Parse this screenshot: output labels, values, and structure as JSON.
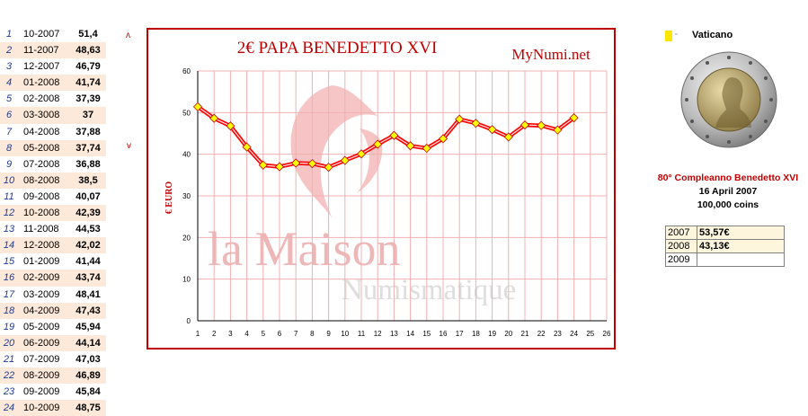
{
  "price_table": [
    {
      "idx": "1",
      "date": "10-2007",
      "price": "51,4"
    },
    {
      "idx": "2",
      "date": "11-2007",
      "price": "48,63"
    },
    {
      "idx": "3",
      "date": "12-2007",
      "price": "46,79"
    },
    {
      "idx": "4",
      "date": "01-2008",
      "price": "41,74"
    },
    {
      "idx": "5",
      "date": "02-2008",
      "price": "37,39"
    },
    {
      "idx": "6",
      "date": "03-3008",
      "price": "37"
    },
    {
      "idx": "7",
      "date": "04-2008",
      "price": "37,88"
    },
    {
      "idx": "8",
      "date": "05-2008",
      "price": "37,74"
    },
    {
      "idx": "9",
      "date": "07-2008",
      "price": "36,88"
    },
    {
      "idx": "10",
      "date": "08-2008",
      "price": "38,5"
    },
    {
      "idx": "11",
      "date": "09-2008",
      "price": "40,07"
    },
    {
      "idx": "12",
      "date": "10-2008",
      "price": "42,39"
    },
    {
      "idx": "13",
      "date": "11-2008",
      "price": "44,53"
    },
    {
      "idx": "14",
      "date": "12-2008",
      "price": "42,02"
    },
    {
      "idx": "15",
      "date": "01-2009",
      "price": "41,44"
    },
    {
      "idx": "16",
      "date": "02-2009",
      "price": "43,74"
    },
    {
      "idx": "17",
      "date": "03-2009",
      "price": "48,41"
    },
    {
      "idx": "18",
      "date": "04-2009",
      "price": "47,43"
    },
    {
      "idx": "19",
      "date": "05-2009",
      "price": "45,94"
    },
    {
      "idx": "20",
      "date": "06-2009",
      "price": "44,14"
    },
    {
      "idx": "21",
      "date": "07-2009",
      "price": "47,03"
    },
    {
      "idx": "22",
      "date": "08-2009",
      "price": "46,89"
    },
    {
      "idx": "23",
      "date": "09-2009",
      "price": "45,84"
    },
    {
      "idx": "24",
      "date": "10-2009",
      "price": "48,75"
    }
  ],
  "markers": {
    "up": "ʌ",
    "down": "v"
  },
  "chart_data": {
    "type": "line",
    "title": "2€  PAPA BENEDETTO XVI",
    "brand": "MyNumi.net",
    "watermark_line1": "la Maison",
    "watermark_line2": "Numismatique",
    "ylabel": "€  EURO",
    "xlabel": "",
    "x": [
      1,
      2,
      3,
      4,
      5,
      6,
      7,
      8,
      9,
      10,
      11,
      12,
      13,
      14,
      15,
      16,
      17,
      18,
      19,
      20,
      21,
      22,
      23,
      24
    ],
    "xticks": [
      "1",
      "2",
      "3",
      "4",
      "5",
      "6",
      "7",
      "8",
      "9",
      "10",
      "11",
      "12",
      "13",
      "14",
      "15",
      "16",
      "17",
      "18",
      "19",
      "20",
      "21",
      "22",
      "23",
      "24",
      "25",
      "26"
    ],
    "yticks": [
      "0",
      "10",
      "20",
      "30",
      "40",
      "50",
      "60"
    ],
    "ylim": [
      0,
      60
    ],
    "xlim": [
      1,
      26
    ],
    "grid": true,
    "series": [
      {
        "values": [
          51.4,
          48.63,
          46.79,
          41.74,
          37.39,
          37,
          37.88,
          37.74,
          36.88,
          38.5,
          40.07,
          42.39,
          44.53,
          42.02,
          41.44,
          43.74,
          48.41,
          47.43,
          45.94,
          44.14,
          47.03,
          46.89,
          45.84,
          48.75
        ]
      }
    ],
    "line_color": "#ff0000",
    "marker_color": "#ffff00"
  },
  "coin": {
    "country": "Vaticano",
    "tiny_mark": "▫",
    "title": "80° Compleanno Benedetto XVI",
    "date": "16 April 2007",
    "mintage": "100,000 coins"
  },
  "year_table": [
    {
      "year": "2007",
      "value": "53,57€"
    },
    {
      "year": "2008",
      "value": "43,13€"
    },
    {
      "year": "2009",
      "value": ""
    }
  ]
}
